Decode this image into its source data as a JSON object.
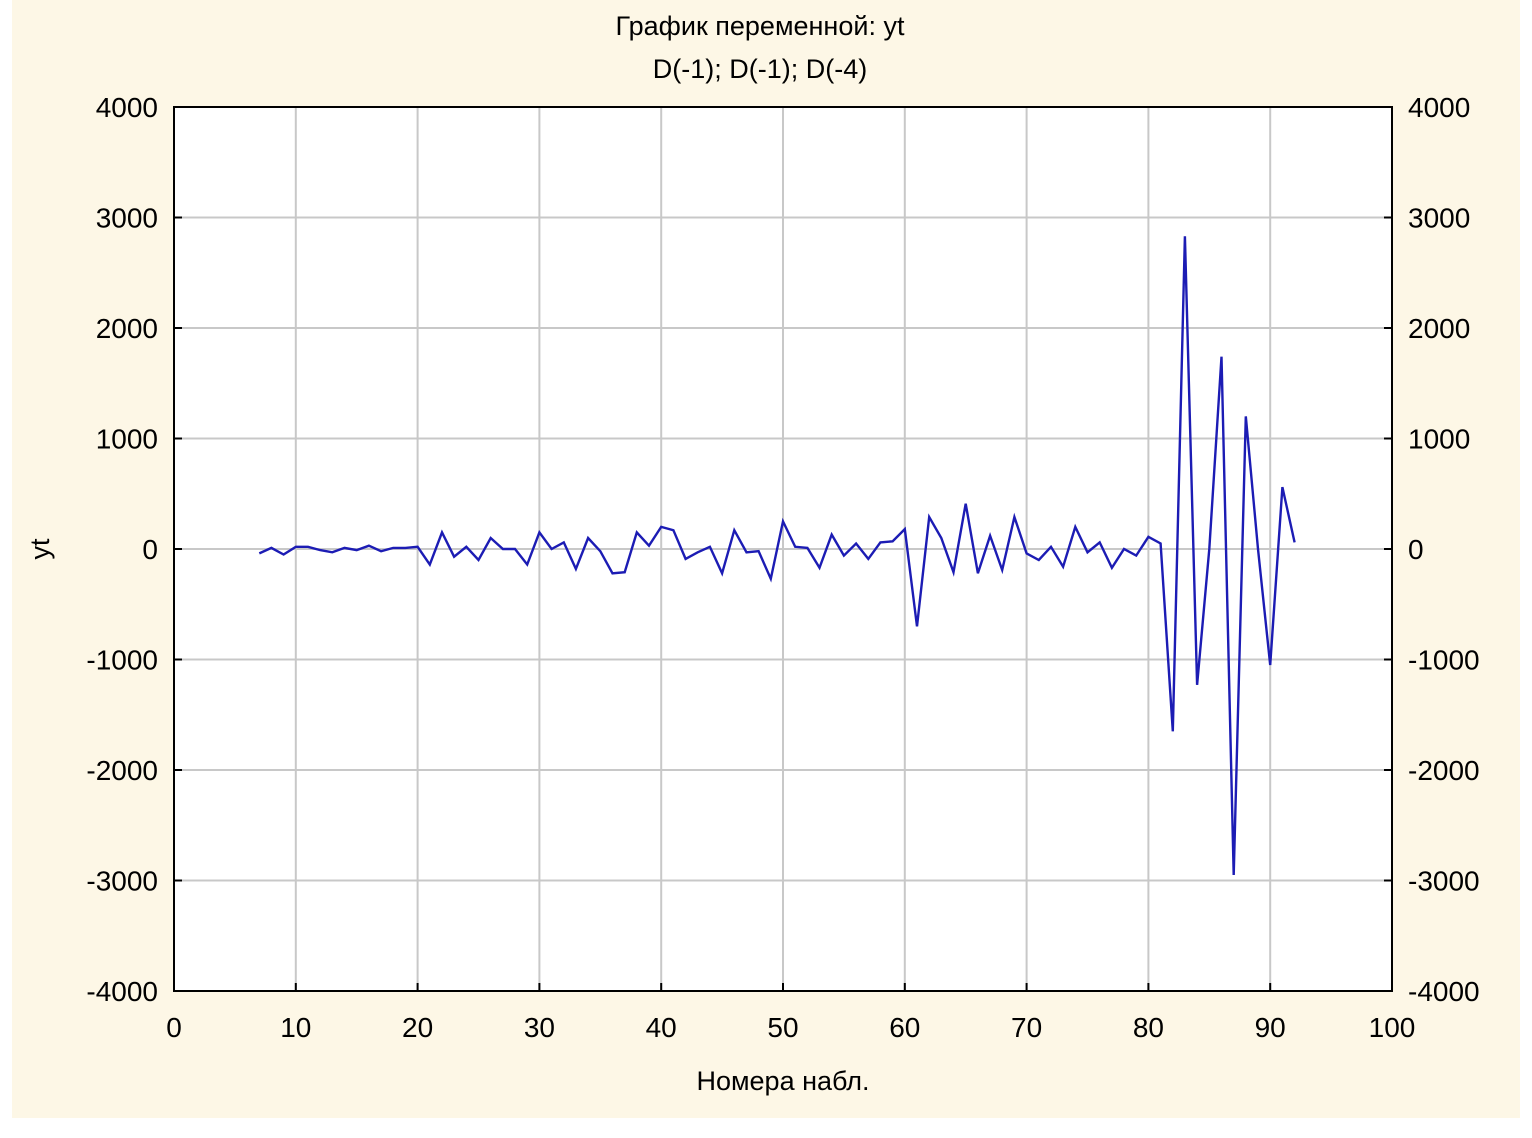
{
  "chart_data": {
    "type": "line",
    "title": "График переменной: yt",
    "subtitle": "D(-1); D(-1); D(-4)",
    "xlabel": "Номера набл.",
    "ylabel": "yt",
    "xlim": [
      0,
      100
    ],
    "ylim": [
      -4000,
      4000
    ],
    "xticks": [
      0,
      10,
      20,
      30,
      40,
      50,
      60,
      70,
      80,
      90,
      100
    ],
    "yticks": [
      4000,
      3000,
      2000,
      1000,
      0,
      -1000,
      -2000,
      -3000,
      -4000
    ],
    "xtick_labels": [
      "0",
      "10",
      "20",
      "30",
      "40",
      "50",
      "60",
      "70",
      "80",
      "90",
      "100"
    ],
    "ytick_labels": [
      "4000",
      "3000",
      "2000",
      "1000",
      "0",
      "-1000",
      "-2000",
      "-3000",
      "-4000"
    ],
    "grid": true,
    "right_axis_mirrored": true,
    "colors": {
      "line": "#1c1cb4",
      "grid": "#c8c8c8",
      "background": "#fdf7e6",
      "plot_area": "#ffffff"
    },
    "series": [
      {
        "x": [
          7,
          8,
          9,
          10,
          11,
          12,
          13,
          14,
          15,
          16,
          17,
          18,
          19,
          20,
          21,
          22,
          23,
          24,
          25,
          26,
          27,
          28,
          29,
          30,
          31,
          32,
          33,
          34,
          35,
          36,
          37,
          38,
          39,
          40,
          41,
          42,
          43,
          44,
          45,
          46,
          47,
          48,
          49,
          50,
          51,
          52,
          53,
          54,
          55,
          56,
          57,
          58,
          59,
          60,
          61,
          62,
          63,
          64,
          65,
          66,
          67,
          68,
          69,
          70,
          71,
          72,
          73,
          74,
          75,
          76,
          77,
          78,
          79,
          80,
          81,
          82,
          83,
          84,
          85,
          86,
          87,
          88,
          89,
          90,
          91,
          92
        ],
        "values": [
          -40,
          10,
          -50,
          20,
          20,
          -10,
          -30,
          10,
          -10,
          30,
          -20,
          10,
          10,
          20,
          -140,
          150,
          -70,
          20,
          -100,
          100,
          0,
          0,
          -140,
          150,
          0,
          60,
          -180,
          100,
          -20,
          -220,
          -210,
          150,
          30,
          200,
          170,
          -90,
          -30,
          20,
          -220,
          170,
          -30,
          -20,
          -270,
          250,
          20,
          10,
          -170,
          130,
          -60,
          50,
          -90,
          60,
          70,
          180,
          -700,
          290,
          100,
          -210,
          410,
          -220,
          120,
          -190,
          290,
          -40,
          -100,
          20,
          -160,
          200,
          -30,
          60,
          -170,
          0,
          -60,
          110,
          50,
          -1650,
          2830,
          -1230,
          0,
          1740,
          -2950,
          1200,
          0,
          -1050,
          560,
          60
        ]
      }
    ]
  }
}
